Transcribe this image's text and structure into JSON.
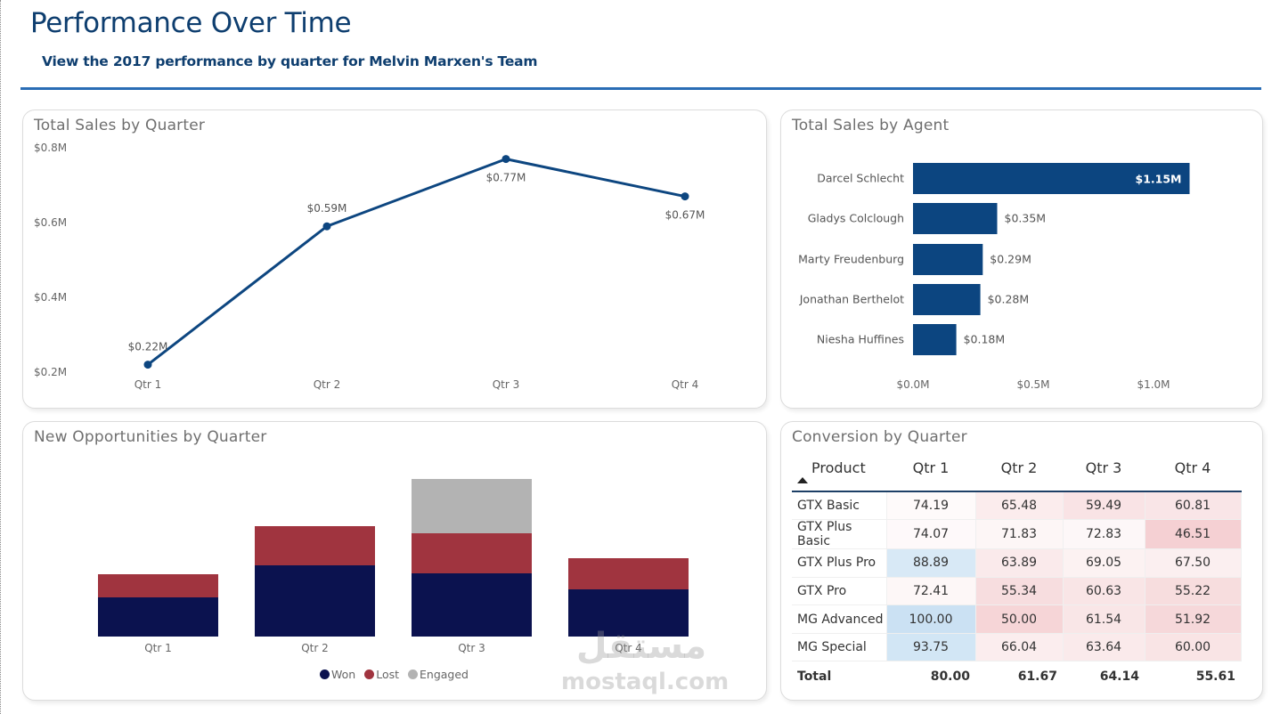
{
  "header": {
    "title": "Performance Over Time",
    "subtitle": "View the 2017 performance by quarter for Melvin Marxen's Team"
  },
  "colors": {
    "title": "#0e3e6f",
    "rule": "#2a6db5",
    "line": "#0d4680",
    "agent_bar": "#0c4580",
    "won": "#0b124f",
    "lost": "#a0343f",
    "engaged": "#b3b3b3",
    "heat_low": "#f3c9cb",
    "heat_high": "#cfe3f3"
  },
  "watermark": {
    "arabic": "مستقل",
    "latin": "mostaql.com"
  },
  "chart_data": [
    {
      "id": "total-sales-by-quarter",
      "type": "line",
      "title": "Total Sales by Quarter",
      "categories": [
        "Qtr 1",
        "Qtr 2",
        "Qtr 3",
        "Qtr 4"
      ],
      "values": [
        0.22,
        0.59,
        0.77,
        0.67
      ],
      "data_labels": [
        "$0.22M",
        "$0.59M",
        "$0.77M",
        "$0.67M"
      ],
      "xlabel": "",
      "ylabel": "",
      "ylim": [
        0.2,
        0.8
      ],
      "yticks": [
        0.8,
        0.6,
        0.4,
        0.2
      ],
      "ytick_labels": [
        "$0.8M",
        "$0.6M",
        "$0.4M",
        "$0.2M"
      ],
      "grid": false
    },
    {
      "id": "total-sales-by-agent",
      "type": "bar",
      "orientation": "horizontal",
      "title": "Total Sales by Agent",
      "categories": [
        "Darcel Schlecht",
        "Gladys Colclough",
        "Marty Freudenburg",
        "Jonathan Berthelot",
        "Niesha Huffines"
      ],
      "values": [
        1.15,
        0.35,
        0.29,
        0.28,
        0.18
      ],
      "data_labels": [
        "$1.15M",
        "$0.35M",
        "$0.29M",
        "$0.28M",
        "$0.18M"
      ],
      "xlim": [
        0,
        1.2
      ],
      "xticks": [
        0.0,
        0.5,
        1.0
      ],
      "xtick_labels": [
        "$0.0M",
        "$0.5M",
        "$1.0M"
      ],
      "grid": false
    },
    {
      "id": "new-opportunities-by-quarter",
      "type": "bar",
      "stacked": true,
      "title": "New Opportunities by Quarter",
      "categories": [
        "Qtr 1",
        "Qtr 2",
        "Qtr 3",
        "Qtr 4"
      ],
      "series": [
        {
          "name": "Won",
          "values": [
            44,
            80,
            71,
            53
          ]
        },
        {
          "name": "Lost",
          "values": [
            26,
            44,
            45,
            35
          ]
        },
        {
          "name": "Engaged",
          "values": [
            0,
            0,
            61,
            0
          ]
        }
      ],
      "ylim": [
        0,
        190
      ],
      "legend": "bottom-center",
      "grid": false
    },
    {
      "id": "conversion-by-quarter",
      "type": "table",
      "title": "Conversion by Quarter",
      "columns": [
        "Product",
        "Qtr 1",
        "Qtr 2",
        "Qtr 3",
        "Qtr 4"
      ],
      "sort": "Product ascending",
      "rows": [
        {
          "product": "GTX Basic",
          "values": [
            "74.19",
            "65.48",
            "59.49",
            "60.81"
          ]
        },
        {
          "product": "GTX Plus Basic",
          "values": [
            "74.07",
            "71.83",
            "72.83",
            "46.51"
          ]
        },
        {
          "product": "GTX Plus Pro",
          "values": [
            "88.89",
            "63.89",
            "69.05",
            "67.50"
          ]
        },
        {
          "product": "GTX Pro",
          "values": [
            "72.41",
            "55.34",
            "60.63",
            "55.22"
          ]
        },
        {
          "product": "MG Advanced",
          "values": [
            "100.00",
            "50.00",
            "61.54",
            "51.92"
          ]
        },
        {
          "product": "MG Special",
          "values": [
            "93.75",
            "66.04",
            "63.64",
            "60.00"
          ]
        }
      ],
      "total": {
        "label": "Total",
        "values": [
          "80.00",
          "61.67",
          "64.14",
          "55.61"
        ]
      }
    }
  ]
}
